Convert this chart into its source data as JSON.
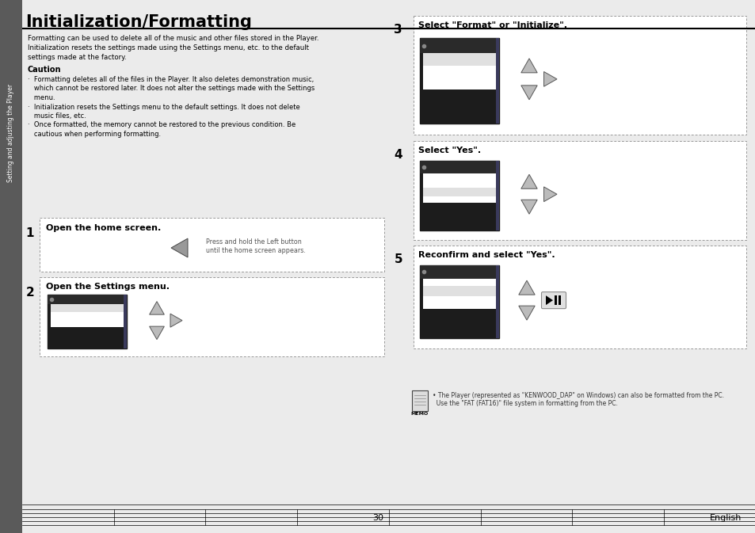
{
  "title": "Initialization/Formatting",
  "bg_color": "#ebebeb",
  "white": "#ffffff",
  "black": "#000000",
  "sidebar_bg": "#5a5a5a",
  "sidebar_text": "Setting and adjusting the Player",
  "main_text_1": "Formatting can be used to delete all of the music and other files stored in the Player.",
  "main_text_2": "Initialization resets the settings made using the Settings menu, etc. to the default",
  "main_text_3": "settings made at the factory.",
  "caution_title": "Caution",
  "caution_lines": [
    "·  Formatting deletes all of the files in the Player. It also deletes demonstration music,",
    "   which cannot be restored later. It does not alter the settings made with the Settings",
    "   menu.",
    "·  Initialization resets the Settings menu to the default settings. It does not delete",
    "   music files, etc.",
    "·  Once formatted, the memory cannot be restored to the previous condition. Be",
    "   cautious when performing formatting."
  ],
  "step1_label": "Open the home screen.",
  "step1_note_1": "Press and hold the Left button",
  "step1_note_2": "until the home screen appears.",
  "step2_label": "Open the Settings menu.",
  "step3_label": "Select \"Format\" or \"Initialize\".",
  "step4_label": "Select \"Yes\".",
  "step5_label": "Reconfirm and select \"Yes\".",
  "memo_line1": "• The Player (represented as \"KENWOOD_DAP\" on Windows) can also be formatted from the PC.",
  "memo_line2": "  Use the \"FAT (FAT16)\" file system in formatting from the PC.",
  "page_num": "30",
  "page_lang": "English"
}
